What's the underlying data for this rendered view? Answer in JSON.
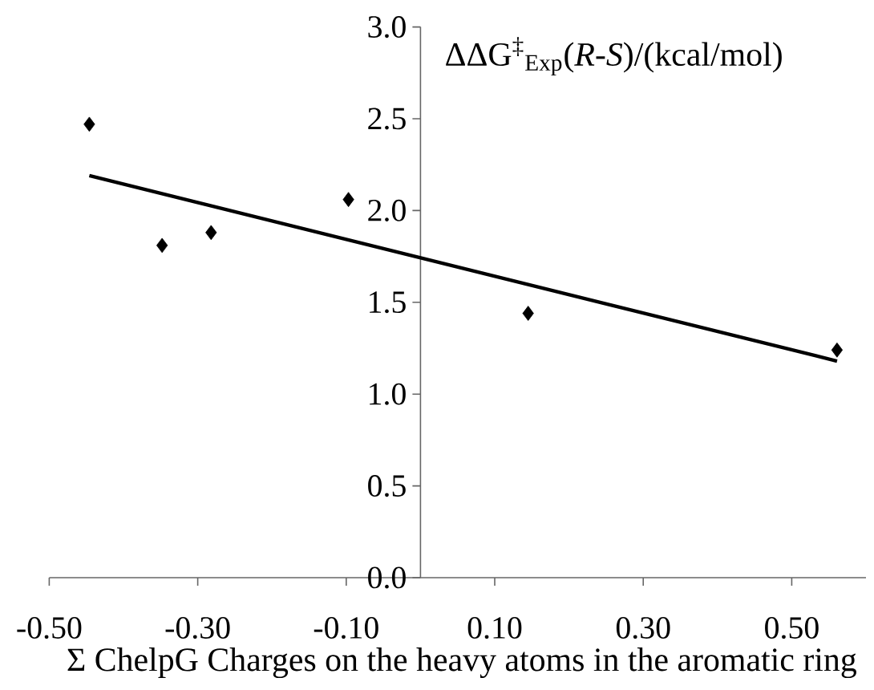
{
  "chart_data": {
    "type": "scatter",
    "xlabel": "Σ ChelpG Charges on the heavy atoms in the aromatic ring",
    "ylabel": "ΔΔG$^{‡}$$_{Exp}$(*R*-*S*)/(kcal/mol)",
    "xlim": [
      -0.5,
      0.6
    ],
    "ylim": [
      0,
      3
    ],
    "xticks": [
      {
        "value": -0.5,
        "label": "-0.50"
      },
      {
        "value": -0.3,
        "label": "-0.30"
      },
      {
        "value": -0.1,
        "label": "-0.10"
      },
      {
        "value": 0.1,
        "label": "0.10"
      },
      {
        "value": 0.3,
        "label": "0.30"
      },
      {
        "value": 0.5,
        "label": "0.50"
      }
    ],
    "yticks": [
      {
        "value": 0,
        "label": "0.0"
      },
      {
        "value": 0.5,
        "label": "0.5"
      },
      {
        "value": 1,
        "label": "1.0"
      },
      {
        "value": 1.5,
        "label": "1.5"
      },
      {
        "value": 2,
        "label": "2.0"
      },
      {
        "value": 2.5,
        "label": "2.5"
      },
      {
        "value": 3,
        "label": "3.0"
      }
    ],
    "series": [
      {
        "color": "#000000",
        "marker": "diamond",
        "x": [
          -0.446,
          -0.348,
          -0.282,
          -0.097,
          0.145,
          0.561
        ],
        "values": [
          2.47,
          1.81,
          1.88,
          2.06,
          1.44,
          1.24
        ]
      },
      {
        "type": "line",
        "color": "#000000",
        "marker": "none",
        "line_style": "solid",
        "x": [
          -0.446,
          0.561
        ],
        "values": [
          2.19,
          1.18
        ]
      }
    ]
  }
}
